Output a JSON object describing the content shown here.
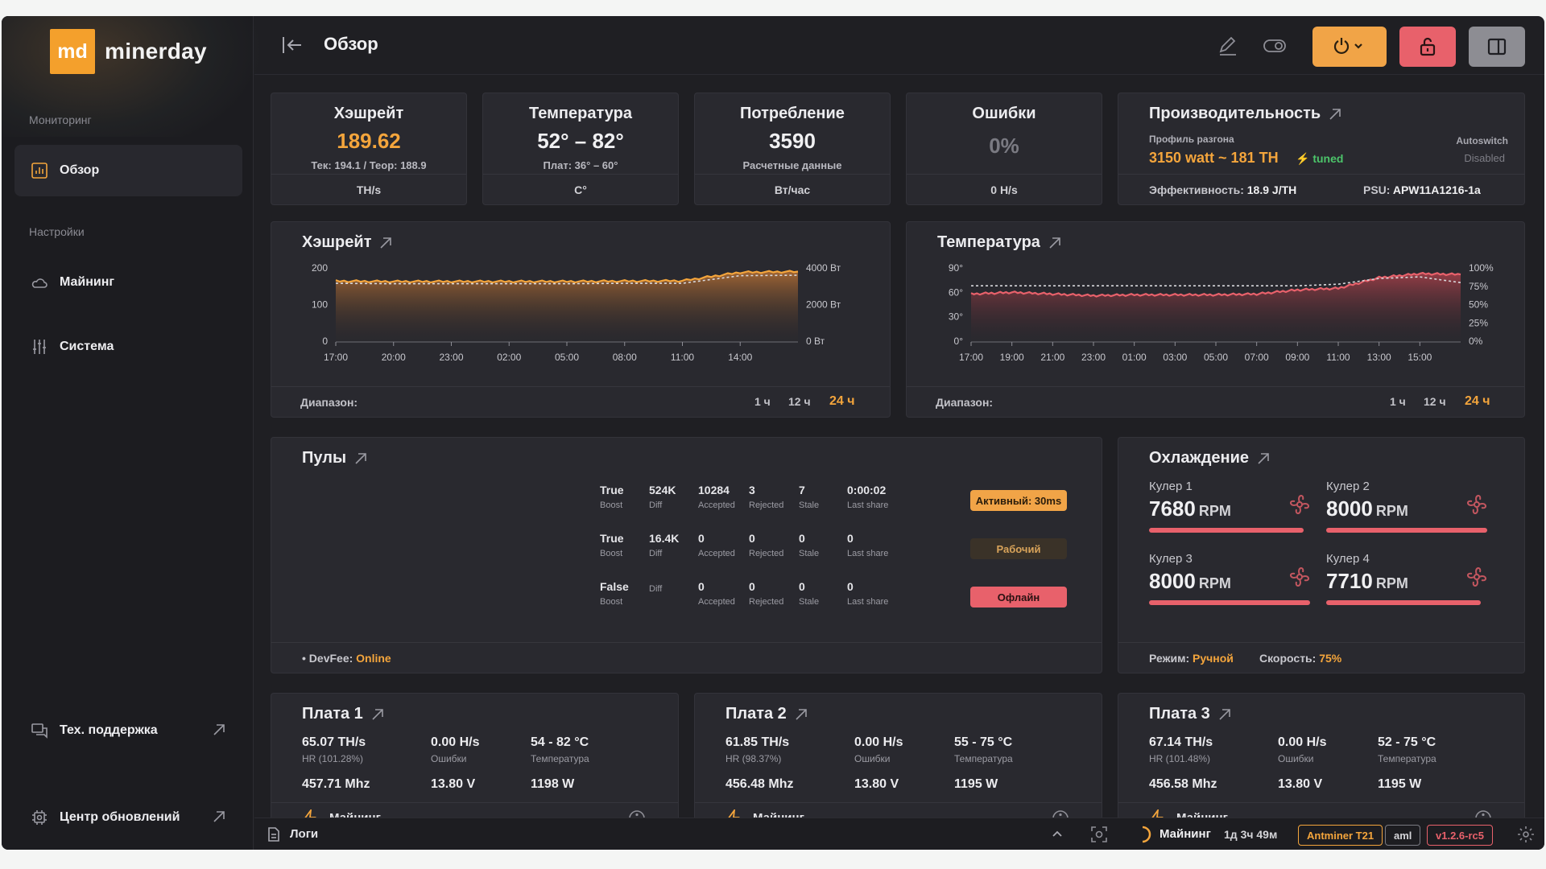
{
  "app": {
    "logo_mark": "md",
    "logo_text": "minerday"
  },
  "sidebar": {
    "section_monitoring": "Мониторинг",
    "section_settings": "Настройки",
    "items": [
      {
        "label": "Обзор",
        "icon": "chart-icon"
      },
      {
        "label": "Майнинг",
        "icon": "cloud-icon"
      },
      {
        "label": "Система",
        "icon": "sliders-icon"
      }
    ],
    "support": "Тех. поддержка",
    "updates": "Центр обновлений"
  },
  "header": {
    "title": "Обзор"
  },
  "stats": [
    {
      "title": "Хэшрейт",
      "value": "189.62",
      "sub": "Тек: 194.1 / Теор: 188.9",
      "unit": "TH/s"
    },
    {
      "title": "Температура",
      "value": "52° – 82°",
      "sub": "Плат: 36° – 60°",
      "unit": "C°"
    },
    {
      "title": "Потребление",
      "value": "3590",
      "sub": "Расчетные данные",
      "unit": "Вт/час"
    },
    {
      "title": "Ошибки",
      "value": "0%",
      "sub": "",
      "unit": "0 H/s"
    }
  ],
  "performance": {
    "title": "Производительность",
    "profile_label": "Профиль разгона",
    "profile_value": "3150 watt ~ 181 TH",
    "tuned": "tuned",
    "autoswitch": "Autoswitch",
    "autoswitch_state": "Disabled",
    "efficiency_label": "Эффективность:",
    "efficiency_value": "18.9 J/TH",
    "psu_label": "PSU:",
    "psu_value": "APW11A1216-1a"
  },
  "hashrate_chart": {
    "title": "Хэшрейт",
    "range_label": "Диапазон:",
    "ranges": [
      "1 ч",
      "12 ч",
      "24 ч"
    ],
    "y_left_ticks": [
      "200",
      "100",
      "0"
    ],
    "y_right_ticks": [
      "4000 Вт",
      "2000 Вт",
      "0 Вт"
    ],
    "x_ticks": [
      "17:00",
      "20:00",
      "23:00",
      "02:00",
      "05:00",
      "08:00",
      "11:00",
      "14:00"
    ]
  },
  "temperature_chart": {
    "title": "Температура",
    "range_label": "Диапазон:",
    "ranges": [
      "1 ч",
      "12 ч",
      "24 ч"
    ],
    "y_left_ticks": [
      "90°",
      "60°",
      "30°",
      "0°"
    ],
    "y_right_ticks": [
      "100%",
      "75%",
      "50%",
      "25%",
      "0%"
    ],
    "x_ticks": [
      "17:00",
      "19:00",
      "21:00",
      "23:00",
      "01:00",
      "03:00",
      "05:00",
      "07:00",
      "09:00",
      "11:00",
      "13:00",
      "15:00"
    ]
  },
  "chart_data": [
    {
      "type": "area",
      "title": "Хэшрейт",
      "x": [
        "17:00",
        "20:00",
        "23:00",
        "02:00",
        "05:00",
        "08:00",
        "11:00",
        "14:00",
        "16:00"
      ],
      "ylim": [
        0,
        200
      ],
      "y2lim": [
        0,
        4000
      ],
      "series": [
        {
          "values": [
            164,
            163,
            163,
            163,
            163,
            164,
            165,
            188,
            190
          ]
        },
        {
          "values": [
            158,
            157,
            157,
            157,
            157,
            158,
            158,
            179,
            180
          ]
        }
      ]
    },
    {
      "type": "area",
      "title": "Температура",
      "x": [
        "17:00",
        "19:00",
        "21:00",
        "23:00",
        "01:00",
        "03:00",
        "05:00",
        "07:00",
        "09:00",
        "11:00",
        "13:00",
        "15:00",
        "16:00"
      ],
      "ylim": [
        0,
        90
      ],
      "y2lim": [
        0,
        100
      ],
      "series": [
        {
          "values": [
            58,
            60,
            58,
            56,
            57,
            57,
            57,
            58,
            63,
            65,
            78,
            83,
            82
          ]
        },
        {
          "values": [
            68,
            68,
            68,
            68,
            68,
            68,
            68,
            68,
            68,
            70,
            77,
            79,
            72
          ]
        }
      ]
    }
  ],
  "pools": {
    "title": "Пулы",
    "rows": [
      {
        "boost": "True",
        "diff": "524K",
        "accepted": "10284",
        "rejected": "3",
        "stale": "7",
        "last_share": "0:00:02",
        "status": "Активный: 30ms"
      },
      {
        "boost": "True",
        "diff": "16.4K",
        "accepted": "0",
        "rejected": "0",
        "stale": "0",
        "last_share": "0",
        "status": "Рабочий"
      },
      {
        "boost": "False",
        "diff": "",
        "accepted": "0",
        "rejected": "0",
        "stale": "0",
        "last_share": "0",
        "status": "Офлайн"
      }
    ],
    "labels": {
      "boost": "Boost",
      "diff": "Diff",
      "accepted": "Accepted",
      "rejected": "Rejected",
      "stale": "Stale",
      "last_share": "Last share"
    },
    "devfee_label": "DevFee:",
    "devfee_value": "Online"
  },
  "cooling": {
    "title": "Охлаждение",
    "fans": [
      {
        "name": "Кулер 1",
        "rpm": "7680",
        "unit": "RPM",
        "level": 0.96
      },
      {
        "name": "Кулер 2",
        "rpm": "8000",
        "unit": "RPM",
        "level": 1.0
      },
      {
        "name": "Кулер 3",
        "rpm": "8000",
        "unit": "RPM",
        "level": 1.0
      },
      {
        "name": "Кулер 4",
        "rpm": "7710",
        "unit": "RPM",
        "level": 0.96
      }
    ],
    "mode_label": "Режим:",
    "mode_value": "Ручной",
    "speed_label": "Скорость:",
    "speed_value": "75%"
  },
  "boards": [
    {
      "title": "Плата 1",
      "hr": "65.07 TH/s",
      "hr_sub": "HR (101.28%)",
      "err": "0.00 H/s",
      "err_label": "Ошибки",
      "temp": "54 - 82 °C",
      "temp_label": "Температура",
      "freq": "457.71 Mhz",
      "volt": "13.80 V",
      "power": "1198 W",
      "status": "Майнинг"
    },
    {
      "title": "Плата 2",
      "hr": "61.85 TH/s",
      "hr_sub": "HR (98.37%)",
      "err": "0.00 H/s",
      "err_label": "Ошибки",
      "temp": "55 - 75 °C",
      "temp_label": "Температура",
      "freq": "456.48 Mhz",
      "volt": "13.80 V",
      "power": "1195 W",
      "status": "Майнинг"
    },
    {
      "title": "Плата 3",
      "hr": "67.14 TH/s",
      "hr_sub": "HR (101.48%)",
      "err": "0.00 H/s",
      "err_label": "Ошибки",
      "temp": "52 - 75 °C",
      "temp_label": "Температура",
      "freq": "456.58 Mhz",
      "volt": "13.80 V",
      "power": "1195 W",
      "status": "Майнинг"
    }
  ],
  "bottombar": {
    "logs": "Логи",
    "status": "Майнинг",
    "uptime": "1д 3ч 49м",
    "model": "Antminer T21",
    "arch": "aml",
    "version": "v1.2.6-rc5"
  },
  "colors": {
    "accent": "#f4a53c",
    "danger": "#e8616b",
    "success": "#4cc46a",
    "bg": "#1f1f23",
    "card": "#29292f"
  }
}
